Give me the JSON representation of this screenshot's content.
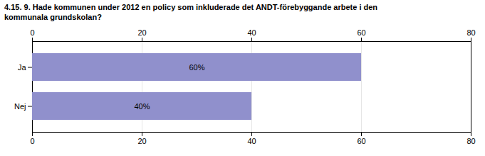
{
  "chart_data": {
    "type": "bar",
    "orientation": "horizontal",
    "title": "4.15. 9. Hade kommunen under 2012 en policy som inkluderade det ANDT-förebyggande arbete i den\nkommunala grundskolan?",
    "categories": [
      "Ja",
      "Nej"
    ],
    "values": [
      60,
      40
    ],
    "value_labels": [
      "60%",
      "40%"
    ],
    "data_labels": true,
    "color": "#9090cc",
    "xlim": [
      0,
      80
    ],
    "xticks": [
      0,
      20,
      40,
      60,
      80
    ],
    "grid": true
  }
}
